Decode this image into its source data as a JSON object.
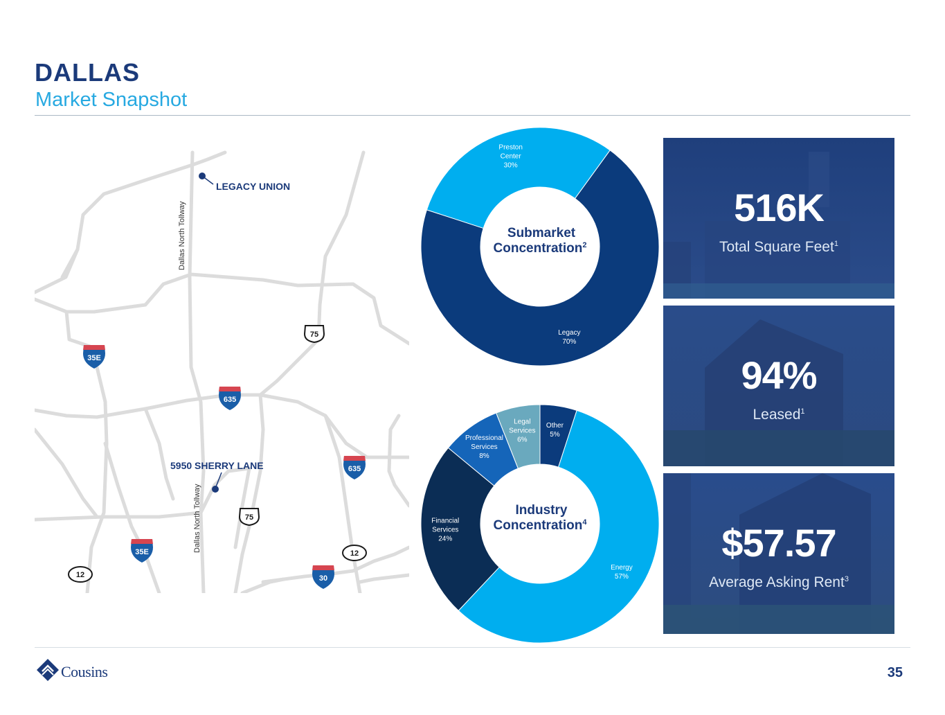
{
  "header": {
    "title": "DALLAS",
    "subtitle": "Market Snapshot"
  },
  "map": {
    "places": {
      "legacy_union": "LEGACY UNION",
      "sherry_lane": "5950 SHERRY LANE"
    },
    "roads": {
      "tollway_north": "Dallas North Tollway",
      "tollway_south": "Dallas North Tollway"
    },
    "shields": {
      "i35e_north": "35E",
      "us75_north": "75",
      "i635_center": "635",
      "i635_east": "635",
      "us75_south": "75",
      "i35e_south": "35E",
      "sh12_west": "12",
      "sh12_east": "12",
      "i30": "30"
    }
  },
  "chart_data": [
    {
      "type": "pie",
      "title": "Submarket Concentration",
      "title_line1": "Submarket",
      "title_line2": "Concentration",
      "footnote": "2",
      "categories": [
        "Legacy",
        "Preston Center"
      ],
      "values": [
        70,
        30
      ],
      "value_labels": [
        "70%",
        "30%"
      ],
      "colors": [
        "#0b3b7c",
        "#00aeef"
      ]
    },
    {
      "type": "pie",
      "title": "Industry Concentration",
      "title_line1": "Industry",
      "title_line2": "Concentration",
      "footnote": "4",
      "categories": [
        "Other",
        "Energy",
        "Financial Services",
        "Professional Services",
        "Legal Services"
      ],
      "values": [
        5,
        57,
        24,
        8,
        6
      ],
      "value_labels": [
        "5%",
        "57%",
        "24%",
        "8%",
        "6%"
      ],
      "colors": [
        "#0b3b7c",
        "#00aeef",
        "#0b2d55",
        "#1565b9",
        "#6aa9be"
      ]
    }
  ],
  "stats": [
    {
      "value": "516K",
      "label": "Total Square Feet",
      "footnote": "1"
    },
    {
      "value": "94%",
      "label": "Leased",
      "footnote": "1"
    },
    {
      "value": "$57.57",
      "label": "Average Asking Rent",
      "footnote": "3"
    }
  ],
  "footer": {
    "logo_text": "Cousins",
    "page_number": "35"
  },
  "colors": {
    "brand_navy": "#1b3a7a",
    "accent_cyan": "#27a9e1",
    "road_gray": "#dcdcdc"
  }
}
